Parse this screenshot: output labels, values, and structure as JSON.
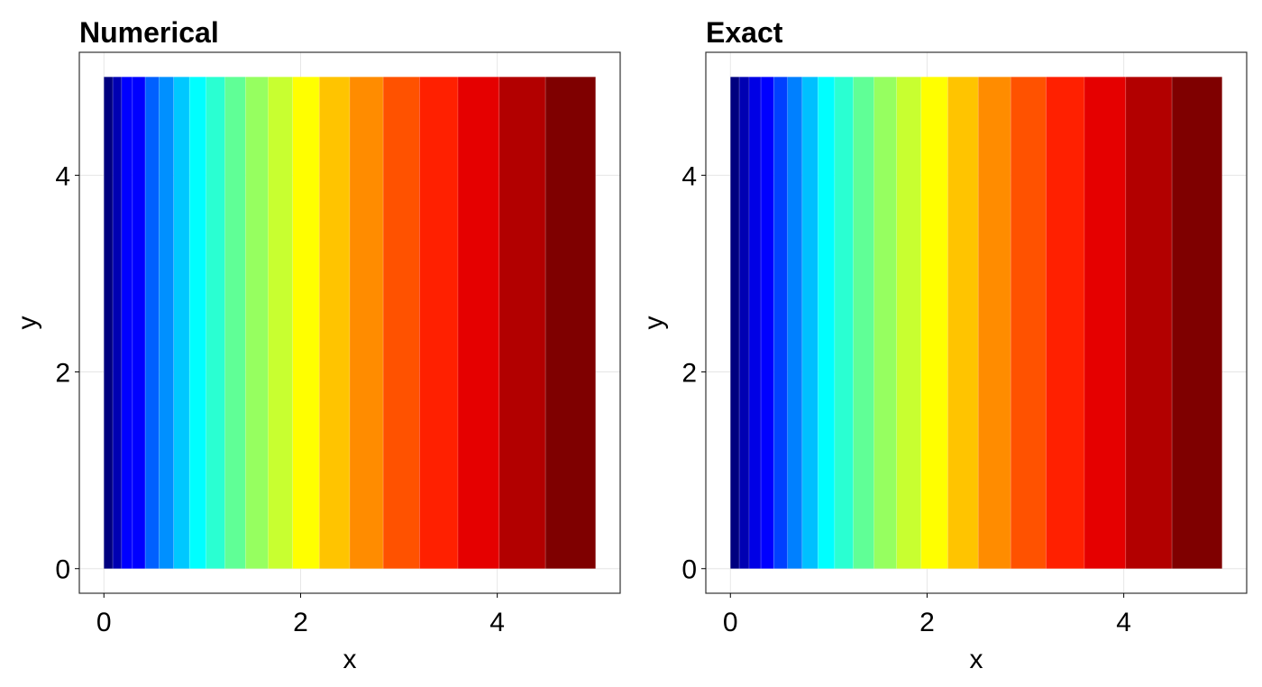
{
  "chart_data": [
    {
      "type": "heatmap",
      "title": "Numerical",
      "xlabel": "x",
      "ylabel": "y",
      "xlim": [
        -0.25,
        5.25
      ],
      "ylim": [
        -0.25,
        5.25
      ],
      "xticks": [
        0,
        2,
        4
      ],
      "xtick_labels": [
        "0",
        "2",
        "4"
      ],
      "yticks": [
        0,
        2,
        4
      ],
      "ytick_labels": [
        "0",
        "2",
        "4"
      ],
      "grid": true,
      "y_range": [
        0,
        5
      ],
      "colormap": "jet",
      "band_edges": [
        0,
        0.09,
        0.18,
        0.29,
        0.42,
        0.56,
        0.71,
        0.87,
        1.04,
        1.23,
        1.44,
        1.67,
        1.92,
        2.19,
        2.5,
        2.84,
        3.21,
        3.6,
        4.02,
        4.49,
        5.0
      ],
      "band_colors": [
        "#00007f",
        "#0000b2",
        "#0000ff",
        "#0000ff",
        "#0060ff",
        "#0090ff",
        "#00c8ff",
        "#00ffff",
        "#2affd2",
        "#60ff96",
        "#96ff60",
        "#c8ff30",
        "#ffff00",
        "#ffc400",
        "#ff8c00",
        "#ff5200",
        "#ff2000",
        "#e50000",
        "#b20000",
        "#7f0000"
      ]
    },
    {
      "type": "heatmap",
      "title": "Exact",
      "xlabel": "x",
      "ylabel": "y",
      "xlim": [
        -0.25,
        5.25
      ],
      "ylim": [
        -0.25,
        5.25
      ],
      "xticks": [
        0,
        2,
        4
      ],
      "xtick_labels": [
        "0",
        "2",
        "4"
      ],
      "yticks": [
        0,
        2,
        4
      ],
      "ytick_labels": [
        "0",
        "2",
        "4"
      ],
      "grid": true,
      "y_range": [
        0,
        5
      ],
      "colormap": "jet",
      "band_edges": [
        0,
        0.09,
        0.19,
        0.31,
        0.44,
        0.58,
        0.73,
        0.89,
        1.06,
        1.25,
        1.46,
        1.69,
        1.94,
        2.21,
        2.52,
        2.85,
        3.21,
        3.6,
        4.02,
        4.49,
        5.0
      ],
      "band_colors": [
        "#00007f",
        "#0000b2",
        "#0000e5",
        "#0000ff",
        "#0040ff",
        "#0080ff",
        "#00c0ff",
        "#00ffff",
        "#2affd2",
        "#60ff96",
        "#96ff60",
        "#c8ff30",
        "#ffff00",
        "#ffc400",
        "#ff8c00",
        "#ff5200",
        "#ff2000",
        "#e50000",
        "#b20000",
        "#7f0000"
      ]
    }
  ]
}
